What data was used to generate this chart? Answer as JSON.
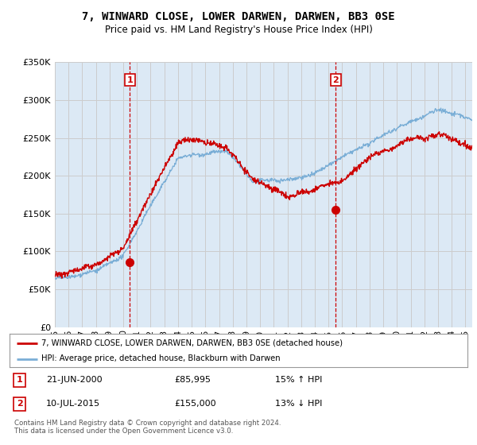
{
  "title": "7, WINWARD CLOSE, LOWER DARWEN, DARWEN, BB3 0SE",
  "subtitle": "Price paid vs. HM Land Registry's House Price Index (HPI)",
  "legend_line1": "7, WINWARD CLOSE, LOWER DARWEN, DARWEN, BB3 0SE (detached house)",
  "legend_line2": "HPI: Average price, detached house, Blackburn with Darwen",
  "table_row1": [
    "1",
    "21-JUN-2000",
    "£85,995",
    "15% ↑ HPI"
  ],
  "table_row2": [
    "2",
    "10-JUL-2015",
    "£155,000",
    "13% ↓ HPI"
  ],
  "footnote": "Contains HM Land Registry data © Crown copyright and database right 2024.\nThis data is licensed under the Open Government Licence v3.0.",
  "sale1_date": 2000.47,
  "sale1_price": 85995,
  "sale2_date": 2015.52,
  "sale2_price": 155000,
  "red_color": "#cc0000",
  "blue_color": "#7aaed6",
  "vline_color": "#cc0000",
  "grid_color": "#cccccc",
  "plot_bg_color": "#dce9f5",
  "background_color": "#ffffff",
  "ylim": [
    0,
    350000
  ],
  "xlim_start": 1995,
  "xlim_end": 2025.5
}
